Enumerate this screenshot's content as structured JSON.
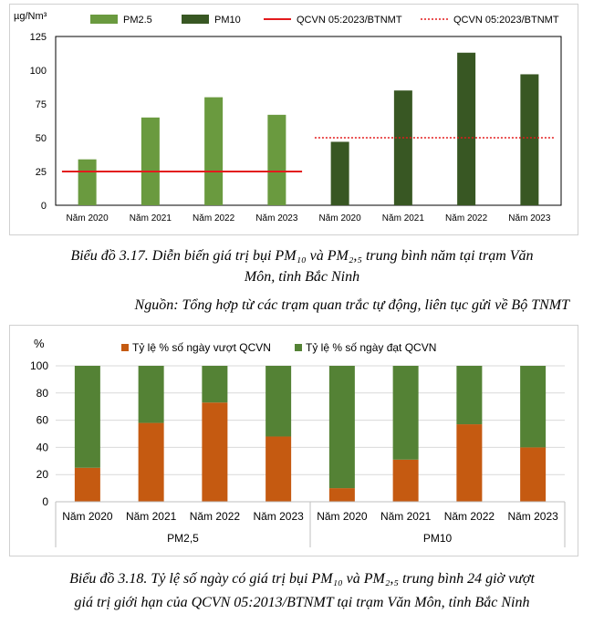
{
  "chart_data": [
    {
      "type": "bar",
      "unit_label": "µg/Nm³",
      "categories": [
        "Năm 2020",
        "Năm 2021",
        "Năm 2022",
        "Năm 2023",
        "Năm 2020",
        "Năm 2021",
        "Năm 2022",
        "Năm 2023"
      ],
      "series": [
        {
          "name": "PM2.5",
          "color": "#6a9a3f",
          "values": [
            34,
            65,
            80,
            67,
            null,
            null,
            null,
            null
          ]
        },
        {
          "name": "PM10",
          "color": "#385723",
          "values": [
            null,
            null,
            null,
            null,
            47,
            85,
            113,
            97
          ]
        }
      ],
      "reference_lines": [
        {
          "name": "QCVN 05:2023/BTNMT",
          "style": "solid",
          "color": "#e31a1c",
          "value": 25,
          "applies_to": "PM2.5"
        },
        {
          "name": "QCVN 05:2023/BTNMT",
          "style": "dotted",
          "color": "#e31a1c",
          "value": 50,
          "applies_to": "PM10"
        }
      ],
      "ylim": [
        0,
        125
      ],
      "yticks": [
        0,
        25,
        50,
        75,
        100,
        125
      ],
      "legend_position": "top"
    },
    {
      "type": "bar",
      "stacked": true,
      "unit_label": "%",
      "groups": [
        {
          "label": "PM2,5",
          "categories": [
            "Năm 2020",
            "Năm 2021",
            "Năm 2022",
            "Năm 2023"
          ]
        },
        {
          "label": "PM10",
          "categories": [
            "Năm 2020",
            "Năm 2021",
            "Năm 2022",
            "Năm 2023"
          ]
        }
      ],
      "series": [
        {
          "name": "Tỷ lệ % số ngày  vượt QCVN",
          "color": "#c55a11",
          "values": [
            25,
            58,
            73,
            48,
            10,
            31,
            57,
            40
          ]
        },
        {
          "name": "Tỷ lệ % số ngày đạt QCVN",
          "color": "#548235",
          "values": [
            75,
            42,
            27,
            52,
            90,
            69,
            43,
            60
          ]
        }
      ],
      "ylim": [
        0,
        100
      ],
      "yticks": [
        0,
        20,
        40,
        60,
        80,
        100
      ],
      "legend_position": "top"
    }
  ],
  "captions": {
    "fig1_line1": "Biểu đồ 3.17. Diễn biến giá trị bụi PM₁₀ và PM₂,₅ trung bình năm tại trạm Văn",
    "fig1_line2": "Môn, tỉnh Bắc Ninh",
    "source": "Nguồn: Tổng hợp từ các trạm quan trắc tự động, liên tục gửi về Bộ TNMT",
    "fig2_line1": "Biểu đồ 3.18. Tỷ lệ số ngày có giá trị bụi PM₁₀ và PM₂,₅ trung bình 24 giờ vượt",
    "fig2_line2": "giá trị giới hạn của QCVN 05:2013/BTNMT tại trạm Văn Môn, tỉnh Bắc Ninh"
  }
}
